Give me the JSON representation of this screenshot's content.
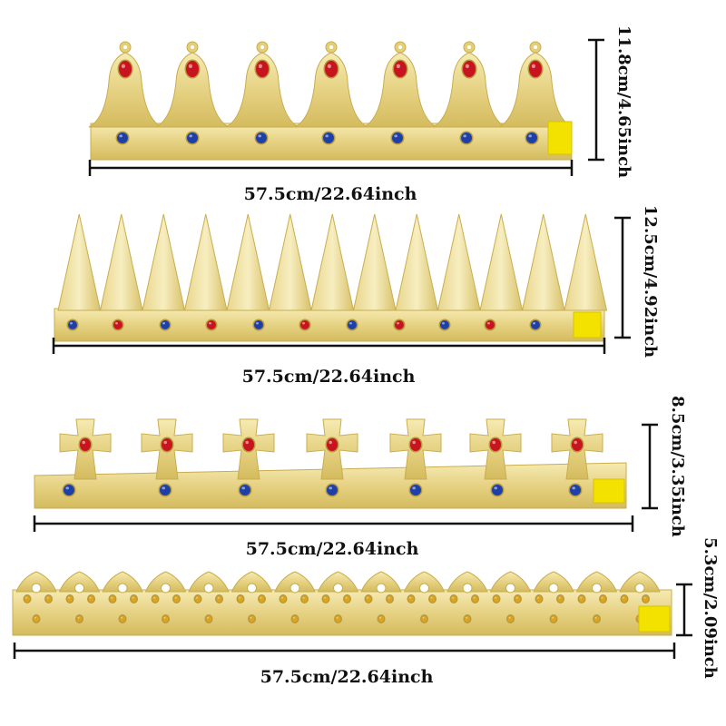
{
  "colors": {
    "gold_light": "#f3e6a6",
    "gold_mid": "#e4cf78",
    "gold_dark": "#c9ad4e",
    "gem_red": "#c8141e",
    "gem_blue": "#1f3fa8",
    "gem_amber": "#e0a41a",
    "velcro": "#f3e200",
    "line": "#111111"
  },
  "crowns": [
    {
      "id": "crown-1",
      "style": "round-points",
      "width_label": "57.5cm/22.64inch",
      "height_label": "11.8cm/4.65inch"
    },
    {
      "id": "crown-2",
      "style": "spikes",
      "width_label": "57.5cm/22.64inch",
      "height_label": "12.5cm/4.92inch"
    },
    {
      "id": "crown-3",
      "style": "crosses",
      "width_label": "57.5cm/22.64inch",
      "height_label": "8.5cm/3.35inch"
    },
    {
      "id": "crown-4",
      "style": "small-points",
      "width_label": "57.5cm/22.64inch",
      "height_label": "5.3cm/2.09inch"
    }
  ]
}
